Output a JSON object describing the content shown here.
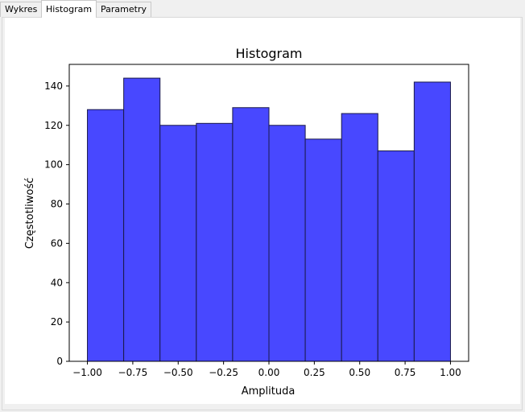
{
  "tabs": [
    {
      "label": "Wykres",
      "active": false
    },
    {
      "label": "Histogram",
      "active": true
    },
    {
      "label": "Parametry",
      "active": false
    }
  ],
  "colors": {
    "bar_fill": "#4848ff",
    "bar_edge": "#1a1a4a"
  },
  "chart_data": {
    "type": "bar",
    "title": "Histogram",
    "xlabel": "Amplituda",
    "ylabel": "Częstotliwość",
    "bin_edges": [
      -1.0,
      -0.8,
      -0.6,
      -0.4,
      -0.2,
      0.0,
      0.2,
      0.4,
      0.6,
      0.8,
      1.0
    ],
    "values": [
      128,
      144,
      120,
      121,
      129,
      120,
      113,
      126,
      107,
      142
    ],
    "xlim": [
      -1.1,
      1.1
    ],
    "ylim": [
      0,
      151
    ],
    "x_ticks": [
      -1.0,
      -0.75,
      -0.5,
      -0.25,
      0.0,
      0.25,
      0.5,
      0.75,
      1.0
    ],
    "x_tick_labels": [
      "−1.00",
      "−0.75",
      "−0.50",
      "−0.25",
      "0.00",
      "0.25",
      "0.50",
      "0.75",
      "1.00"
    ],
    "y_ticks": [
      0,
      20,
      40,
      60,
      80,
      100,
      120,
      140
    ],
    "y_tick_labels": [
      "0",
      "20",
      "40",
      "60",
      "80",
      "100",
      "120",
      "140"
    ],
    "grid": false,
    "legend": "none"
  }
}
